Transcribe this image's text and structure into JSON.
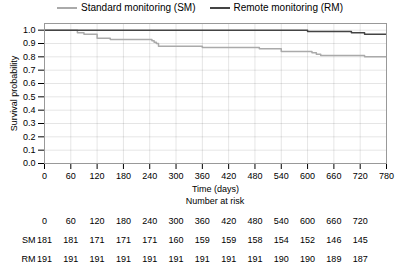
{
  "chart_data": {
    "type": "step",
    "xlabel": "Time (days)",
    "ylabel": "Survival probability",
    "series": [
      {
        "name": "Standard monitoring (SM)",
        "color": "#aaaaaa",
        "x": [
          0,
          60,
          75,
          90,
          120,
          120,
          150,
          180,
          240,
          245,
          250,
          255,
          260,
          300,
          360,
          420,
          480,
          490,
          540,
          540,
          600,
          610,
          620,
          630,
          660,
          720,
          730,
          780
        ],
        "values": [
          1.0,
          1.0,
          0.98,
          0.97,
          0.95,
          0.94,
          0.93,
          0.93,
          0.93,
          0.92,
          0.91,
          0.9,
          0.88,
          0.88,
          0.87,
          0.87,
          0.87,
          0.86,
          0.85,
          0.84,
          0.84,
          0.83,
          0.82,
          0.81,
          0.81,
          0.81,
          0.8,
          0.8
        ]
      },
      {
        "name": "Remote monitoring (RM)",
        "color": "#444444",
        "x": [
          0,
          540,
          600,
          660,
          700,
          720,
          730,
          780
        ],
        "values": [
          1.0,
          1.0,
          0.99,
          0.99,
          0.98,
          0.98,
          0.97,
          0.97
        ]
      }
    ],
    "xlim": [
      0,
      780
    ],
    "ylim": [
      0,
      1.05
    ],
    "xticks": [
      0,
      60,
      120,
      180,
      240,
      300,
      360,
      420,
      480,
      540,
      600,
      660,
      720,
      780
    ],
    "yticks": [
      {
        "value": 0,
        "label": "0.0"
      },
      0.1,
      0.2,
      0.3,
      0.4,
      0.5,
      0.6,
      0.7,
      0.8,
      0.9,
      {
        "value": 1.0,
        "label": "1.0"
      }
    ],
    "grid": true,
    "legend": "top",
    "risk_table": {
      "title": "Number at risk",
      "times": [
        0,
        60,
        120,
        180,
        240,
        300,
        360,
        420,
        480,
        540,
        600,
        660,
        720
      ],
      "rows": [
        {
          "name": "SM",
          "values": [
            181,
            181,
            171,
            171,
            171,
            160,
            159,
            159,
            158,
            154,
            152,
            146,
            145
          ]
        },
        {
          "name": "RM",
          "values": [
            191,
            191,
            191,
            191,
            191,
            191,
            191,
            191,
            191,
            190,
            190,
            189,
            187
          ]
        }
      ]
    }
  }
}
